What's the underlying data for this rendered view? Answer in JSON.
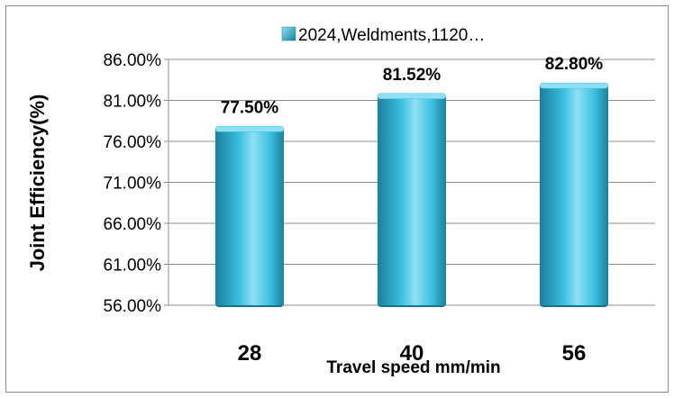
{
  "chart_data": {
    "type": "bar",
    "categories": [
      "28",
      "40",
      "56"
    ],
    "series": [
      {
        "name": "2024,Weldments,1120…",
        "values": [
          77.5,
          81.52,
          82.8
        ],
        "data_labels": [
          "77.50%",
          "81.52%",
          "82.80%"
        ]
      }
    ],
    "xlabel": "Travel speed mm/min",
    "ylabel": "Joint Efficiency(%)",
    "ylim": [
      56,
      86
    ],
    "yticks": [
      56,
      61,
      66,
      71,
      76,
      81,
      86
    ],
    "ytick_labels": [
      "56.00%",
      "61.00%",
      "66.00%",
      "71.00%",
      "76.00%",
      "81.00%",
      "86.00%"
    ],
    "grid": true,
    "legend_position": "top",
    "colors": {
      "bar_light": "#8fe0f3",
      "bar_mid": "#3bbfdf",
      "bar_dark": "#1a7f9c",
      "bar_base": "#17738d",
      "grid": "#8c8c8c"
    }
  }
}
